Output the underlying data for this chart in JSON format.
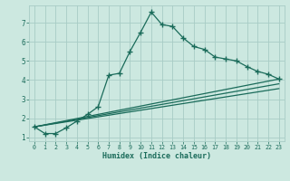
{
  "xlabel": "Humidex (Indice chaleur)",
  "bg_color": "#cce8e0",
  "grid_color": "#a8ccc5",
  "line_color": "#1a6b5a",
  "xlim": [
    -0.5,
    23.5
  ],
  "ylim": [
    0.8,
    7.9
  ],
  "xticks": [
    0,
    1,
    2,
    3,
    4,
    5,
    6,
    7,
    8,
    9,
    10,
    11,
    12,
    13,
    14,
    15,
    16,
    17,
    18,
    19,
    20,
    21,
    22,
    23
  ],
  "yticks": [
    1,
    2,
    3,
    4,
    5,
    6,
    7
  ],
  "main_x": [
    0,
    1,
    2,
    3,
    4,
    5,
    6,
    7,
    8,
    9,
    10,
    11,
    12,
    13,
    14,
    15,
    16,
    17,
    18,
    19,
    20,
    21,
    22,
    23
  ],
  "main_y": [
    1.55,
    1.2,
    1.2,
    1.5,
    1.85,
    2.2,
    2.6,
    4.25,
    4.35,
    5.5,
    6.5,
    7.55,
    6.9,
    6.8,
    6.2,
    5.75,
    5.6,
    5.2,
    5.1,
    5.0,
    4.7,
    4.45,
    4.3,
    4.05
  ],
  "line2_x": [
    0,
    23
  ],
  "line2_y": [
    1.55,
    4.05
  ],
  "line3_x": [
    0,
    23
  ],
  "line3_y": [
    1.55,
    3.8
  ],
  "line4_x": [
    0,
    23
  ],
  "line4_y": [
    1.55,
    3.55
  ]
}
